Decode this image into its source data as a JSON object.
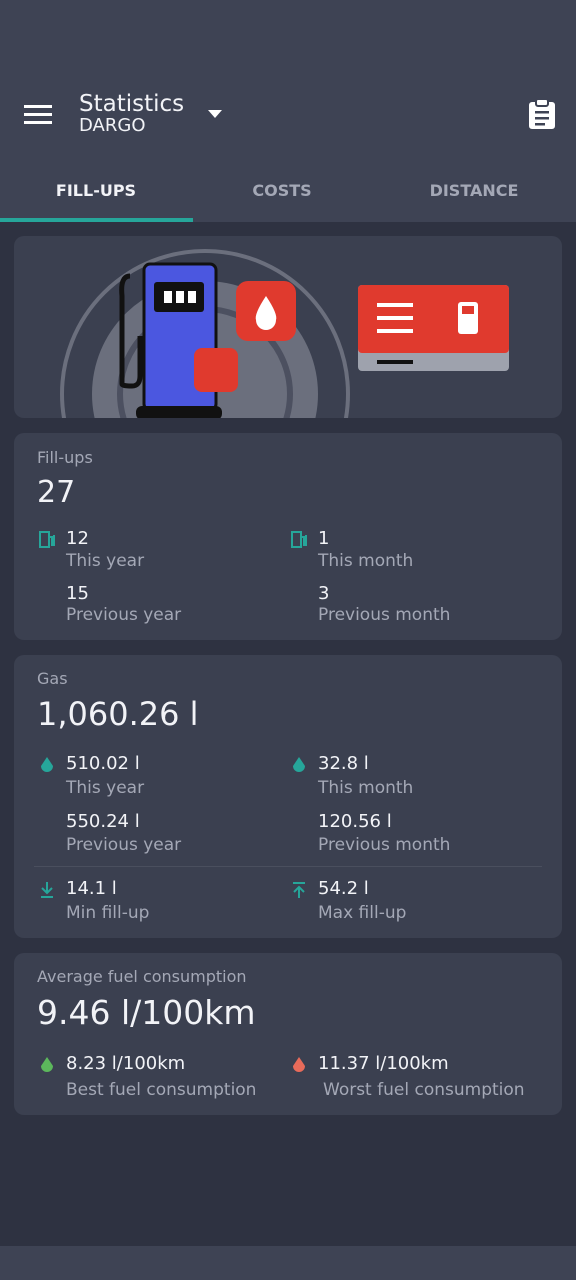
{
  "header": {
    "title": "Statistics",
    "subtitle": "DARGO"
  },
  "tabs": [
    "FILL-UPS",
    "COSTS",
    "DISTANCE"
  ],
  "fillups": {
    "label": "Fill-ups",
    "value": "27",
    "items": [
      {
        "value": "12",
        "label": "This year"
      },
      {
        "value": "1",
        "label": "This month"
      },
      {
        "value": "15",
        "label": "Previous year"
      },
      {
        "value": "3",
        "label": "Previous month"
      }
    ]
  },
  "gas": {
    "label": "Gas",
    "value": "1,060.26 l",
    "items": [
      {
        "value": "510.02 l",
        "label": "This year"
      },
      {
        "value": "32.8 l",
        "label": "This month"
      },
      {
        "value": "550.24 l",
        "label": "Previous year"
      },
      {
        "value": "120.56 l",
        "label": "Previous month"
      },
      {
        "value": "14.1 l",
        "label": "Min fill-up"
      },
      {
        "value": "54.2 l",
        "label": "Max fill-up"
      }
    ]
  },
  "consumption": {
    "label": "Average fuel consumption",
    "value": "9.46 l/100km",
    "items": [
      {
        "value": "8.23 l/100km",
        "label": "Best fuel consumption"
      },
      {
        "value": "11.37 l/100km",
        "label": "Worst fuel consumption"
      }
    ]
  }
}
